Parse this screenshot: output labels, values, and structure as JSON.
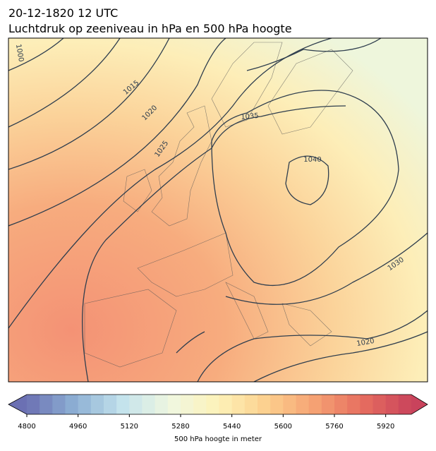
{
  "header": {
    "title": "20-12-1820 12 UTC",
    "subtitle": "Luchtdruk op zeeniveau in hPa en 500 hPa hoogte"
  },
  "map": {
    "isobar_labels": [
      1000,
      1015,
      1020,
      1025,
      1035,
      1040,
      1030,
      1020
    ]
  },
  "colorbar": {
    "label": "500 hPa hoogte in meter",
    "lim": [
      4800,
      6000
    ],
    "ticks": [
      4800,
      4960,
      5120,
      5280,
      5440,
      5600,
      5760,
      5920
    ],
    "colormap": [
      "#6b70b3",
      "#8db0d4",
      "#c4e3ec",
      "#f0f7e0",
      "#fdf2b8",
      "#fccf8d",
      "#f5a173",
      "#e66d5f",
      "#c9435c"
    ]
  }
}
